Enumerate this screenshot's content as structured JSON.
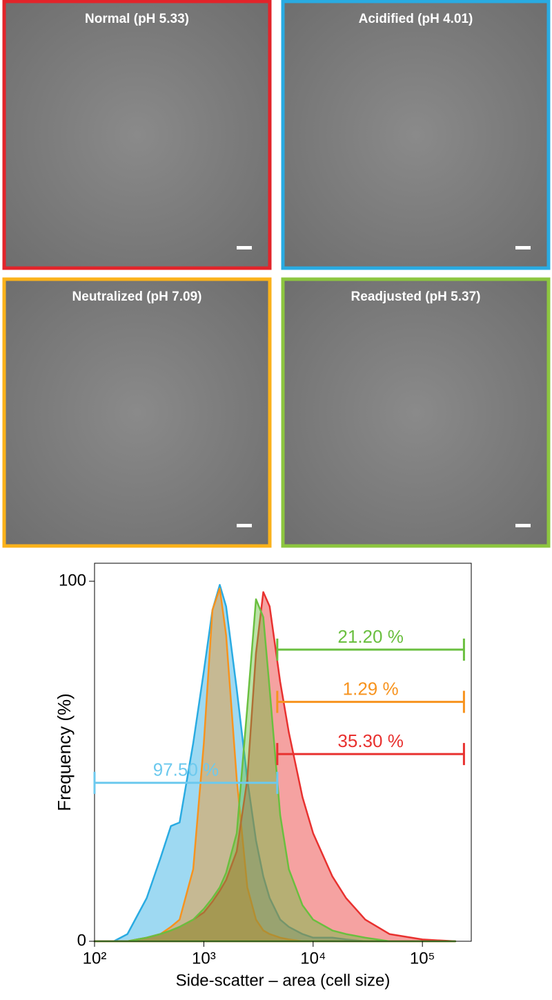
{
  "panels": [
    {
      "title": "Normal (pH 5.33)",
      "color": "#e2242a"
    },
    {
      "title": "Acidified (pH 4.01)",
      "color": "#29abe2"
    },
    {
      "title": "Neutralized (pH 7.09)",
      "color": "#fbb21a"
    },
    {
      "title": "Readjusted (pH 5.37)",
      "color": "#8dc63f"
    }
  ],
  "chart_data": {
    "type": "area",
    "xlabel": "Side-scatter – area (cell size)",
    "ylabel": "Frequency (%)",
    "xscale": "log",
    "xlim": [
      100,
      280000
    ],
    "ylim": [
      0,
      105
    ],
    "xticks": [
      {
        "value": 100,
        "label": "10²"
      },
      {
        "value": 1000,
        "label": "10³"
      },
      {
        "value": 10000,
        "label": "10⁴"
      },
      {
        "value": 100000,
        "label": "10⁵"
      }
    ],
    "yticks": [
      0,
      100
    ],
    "x": [
      100,
      150,
      200,
      300,
      400,
      500,
      600,
      800,
      1000,
      1200,
      1400,
      1600,
      2000,
      2500,
      3000,
      3500,
      4000,
      5000,
      6000,
      8000,
      10000,
      15000,
      20000,
      30000,
      50000,
      100000,
      200000
    ],
    "series": [
      {
        "color": "#29abe2",
        "values": [
          0,
          0,
          2,
          12,
          23,
          32,
          33,
          55,
          75,
          92,
          99,
          93,
          70,
          45,
          28,
          18,
          12,
          6,
          4,
          2,
          1,
          1,
          0.5,
          0,
          0,
          0,
          0
        ]
      },
      {
        "color": "#f7931e",
        "values": [
          0,
          0,
          0,
          1,
          2,
          4,
          6,
          20,
          55,
          92,
          98,
          85,
          45,
          15,
          6,
          3,
          2,
          1,
          0.5,
          0,
          0,
          0,
          0,
          0,
          0,
          0,
          0
        ]
      },
      {
        "color": "#e8312f",
        "values": [
          0,
          0,
          0,
          1,
          2,
          3,
          4,
          6,
          8,
          11,
          14,
          17,
          25,
          45,
          80,
          97,
          93,
          72,
          58,
          40,
          30,
          18,
          12,
          6,
          2,
          0.5,
          0
        ]
      },
      {
        "color": "#6abf3f",
        "values": [
          0,
          0,
          0,
          1,
          2,
          3,
          4,
          6,
          9,
          12,
          15,
          19,
          30,
          65,
          95,
          90,
          70,
          35,
          20,
          10,
          6,
          3,
          2,
          1,
          0,
          0,
          0
        ]
      }
    ],
    "gates": [
      {
        "label": "21.20 %",
        "color": "#6abf3f",
        "range": [
          4700,
          240000
        ],
        "y": 81
      },
      {
        "label": "1.29 %",
        "color": "#f7931e",
        "range": [
          4700,
          240000
        ],
        "y": 66.5
      },
      {
        "label": "35.30 %",
        "color": "#e8312f",
        "range": [
          4700,
          240000
        ],
        "y": 52
      },
      {
        "label": "97.50 %",
        "color": "#6cc9ee",
        "range": [
          100,
          4700
        ],
        "y": 44
      }
    ]
  }
}
